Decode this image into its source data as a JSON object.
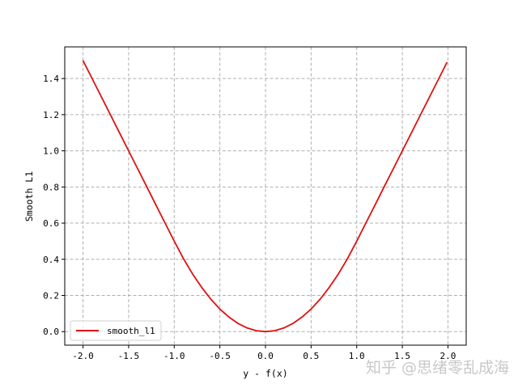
{
  "chart_data": {
    "type": "line",
    "title": "",
    "xlabel": "y - f(x)",
    "ylabel": "Smooth L1",
    "xlim": [
      -2.2,
      2.2
    ],
    "ylim": [
      -0.075,
      1.575
    ],
    "xticks": [
      "-2.0",
      "-1.5",
      "-1.0",
      "-0.5",
      "0.0",
      "0.5",
      "1.0",
      "1.5",
      "2.0"
    ],
    "xtick_values": [
      -2.0,
      -1.5,
      -1.0,
      -0.5,
      0.0,
      0.5,
      1.0,
      1.5,
      2.0
    ],
    "yticks": [
      "0.0",
      "0.2",
      "0.4",
      "0.6",
      "0.8",
      "1.0",
      "1.2",
      "1.4"
    ],
    "ytick_values": [
      0.0,
      0.2,
      0.4,
      0.6,
      0.8,
      1.0,
      1.2,
      1.4
    ],
    "grid": true,
    "grid_style": "dashed",
    "legend": {
      "placement": "lower-left",
      "entries": [
        "smooth_l1"
      ]
    },
    "series": [
      {
        "name": "smooth_l1",
        "color": "#e01010",
        "x": [
          -2.0,
          -1.9,
          -1.8,
          -1.7,
          -1.6,
          -1.5,
          -1.4,
          -1.3,
          -1.2,
          -1.1,
          -1.0,
          -0.9,
          -0.8,
          -0.7,
          -0.6,
          -0.5,
          -0.4,
          -0.3,
          -0.2,
          -0.1,
          0.0,
          0.1,
          0.2,
          0.3,
          0.4,
          0.5,
          0.6,
          0.7,
          0.8,
          0.9,
          1.0,
          1.1,
          1.2,
          1.3,
          1.4,
          1.5,
          1.6,
          1.7,
          1.8,
          1.9,
          1.99
        ],
        "y": [
          1.5,
          1.4,
          1.3,
          1.2,
          1.1,
          1.0,
          0.9,
          0.8,
          0.7,
          0.6,
          0.5,
          0.405,
          0.32,
          0.245,
          0.18,
          0.125,
          0.08,
          0.045,
          0.02,
          0.005,
          0.0,
          0.005,
          0.02,
          0.045,
          0.08,
          0.125,
          0.18,
          0.245,
          0.32,
          0.405,
          0.5,
          0.6,
          0.7,
          0.8,
          0.9,
          1.0,
          1.1,
          1.2,
          1.3,
          1.4,
          1.49
        ]
      }
    ]
  },
  "watermark": "知乎 @思绪零乱成海"
}
